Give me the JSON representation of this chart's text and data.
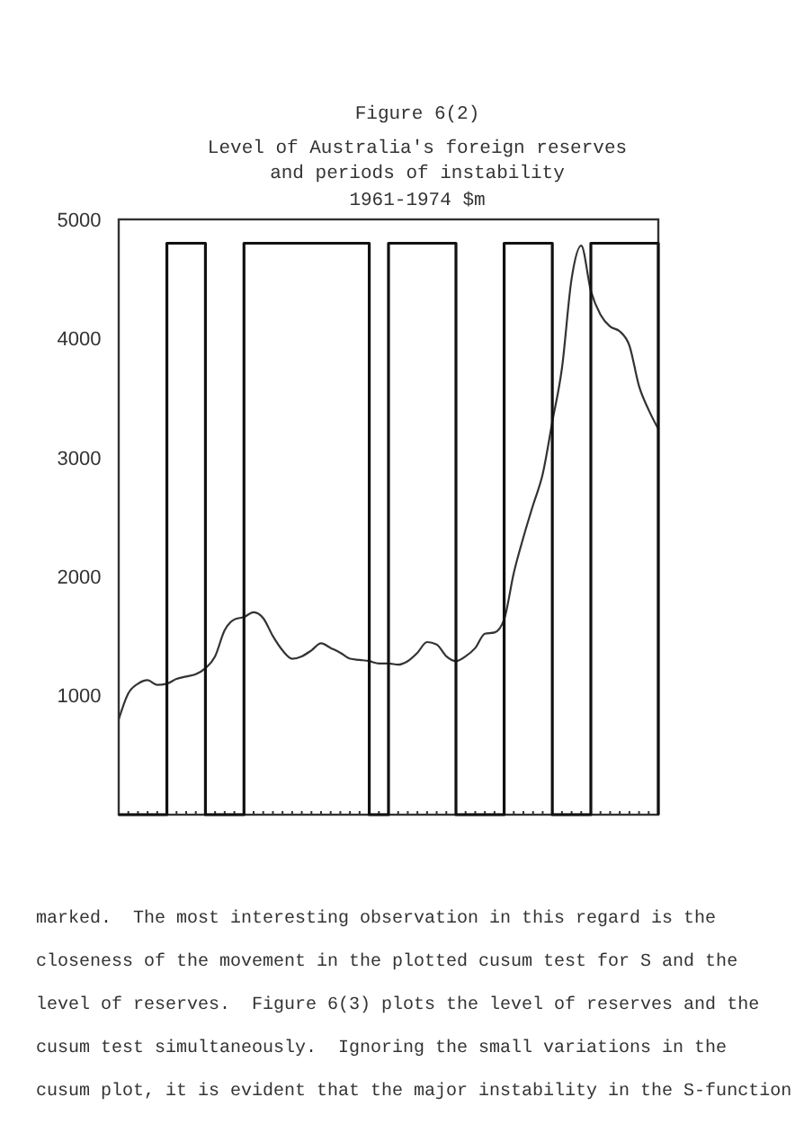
{
  "chart_data": {
    "type": "line",
    "title": "Level of Australia's foreign reserves\nand periods of instability",
    "subtitle": "1961-1974 $m",
    "annotations": [
      "Figure 6(2)",
      "marked.  The most interesting observation in this regard is the",
      "closeness of the movement in the plotted cusum test for S and the",
      "level of reserves.  Figure 6(3) plots the level of reserves and the",
      "cusum test simultaneously.  Ignoring the small variations in the",
      "cusum plot, it is evident that the major instability in the S-function"
    ],
    "categories": [
      null,
      null,
      null,
      null,
      null,
      null,
      null,
      null,
      null,
      null,
      null,
      null,
      null,
      null,
      null,
      null,
      null,
      null,
      null,
      null,
      null,
      null,
      null,
      null,
      null,
      null,
      null,
      null,
      null,
      null,
      null,
      null,
      null,
      null,
      null,
      null,
      null,
      null,
      null,
      null,
      null,
      null,
      null,
      null,
      null,
      null,
      null,
      null,
      null,
      null,
      null,
      null,
      null,
      null,
      null,
      null,
      null
    ],
    "series": [
      {
        "color": "#333333",
        "values": [
          800,
          1020,
          1100,
          1130,
          1090,
          1100,
          1140,
          1160,
          1180,
          1230,
          1330,
          1550,
          1640,
          1660,
          1700,
          1650,
          1500,
          1380,
          1310,
          1330,
          1380,
          1440,
          1400,
          1360,
          1310,
          1300,
          1290,
          1270,
          1270,
          1260,
          1290,
          1360,
          1450,
          1430,
          1330,
          1290,
          1330,
          1400,
          1520,
          1530,
          1640,
          2030,
          2330,
          2600,
          2860,
          3300,
          3750,
          4500,
          4780,
          4400,
          4200,
          4100,
          4060,
          3940,
          3600,
          3400,
          3240
        ]
      },
      {
        "type": "step",
        "color": "#111111",
        "values": [
          0,
          0,
          0,
          0,
          0,
          4800,
          4800,
          4800,
          4800,
          0,
          0,
          0,
          0,
          4800,
          4800,
          4800,
          4800,
          4800,
          4800,
          4800,
          4800,
          4800,
          4800,
          4800,
          4800,
          4800,
          0,
          0,
          4800,
          4800,
          4800,
          4800,
          4800,
          4800,
          4800,
          0,
          0,
          0,
          0,
          0,
          4800,
          4800,
          4800,
          4800,
          4800,
          0,
          0,
          0,
          0,
          4800,
          4800,
          4800,
          4800,
          4800,
          4800,
          4800,
          0
        ]
      }
    ],
    "ylim": [
      0,
      5000
    ],
    "yticks": [
      1000,
      2000,
      3000,
      4000,
      5000
    ],
    "tick_labels": "y",
    "grid": false
  }
}
